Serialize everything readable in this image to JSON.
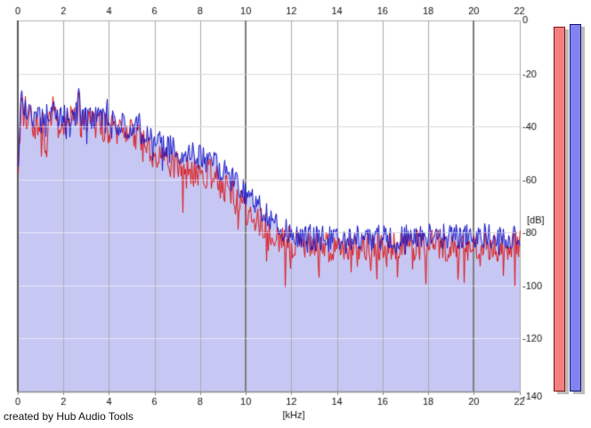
{
  "footer": {
    "credit": "created by Hub Audio Tools"
  },
  "chart_data": {
    "type": "line",
    "subtype": "audio-spectrum-analyzer",
    "title": "",
    "xlabel": "[kHz]",
    "ylabel": "[dB]",
    "xlim": [
      0,
      22
    ],
    "ylim": [
      -140,
      0
    ],
    "x_ticks": [
      0,
      2,
      4,
      6,
      8,
      10,
      12,
      14,
      16,
      18,
      20,
      22
    ],
    "x_major_gridlines": [
      10,
      20
    ],
    "y_ticks": [
      0,
      -20,
      -40,
      -60,
      -80,
      -100,
      -120,
      -140
    ],
    "grid": true,
    "legend_position": "none",
    "series": [
      {
        "name": "channel-red",
        "color": "#dc1414",
        "envelope_keypoints": [
          [
            0.0,
            -54
          ],
          [
            0.1,
            -38
          ],
          [
            0.3,
            -36
          ],
          [
            0.6,
            -38
          ],
          [
            1.0,
            -39
          ],
          [
            1.5,
            -38
          ],
          [
            2.0,
            -39
          ],
          [
            2.5,
            -37
          ],
          [
            3.0,
            -39
          ],
          [
            3.5,
            -39.5
          ],
          [
            4.0,
            -40.5
          ],
          [
            4.5,
            -42
          ],
          [
            5.0,
            -43
          ],
          [
            5.5,
            -46.5
          ],
          [
            6.0,
            -51
          ],
          [
            6.5,
            -52.5
          ],
          [
            7.0,
            -55
          ],
          [
            7.5,
            -56
          ],
          [
            8.0,
            -58
          ],
          [
            8.5,
            -59
          ],
          [
            9.0,
            -63
          ],
          [
            9.5,
            -67
          ],
          [
            10.0,
            -71
          ],
          [
            10.5,
            -75.5
          ],
          [
            11.0,
            -79
          ],
          [
            11.5,
            -82
          ],
          [
            12.0,
            -84
          ],
          [
            13,
            -85.5
          ],
          [
            14,
            -86
          ],
          [
            15,
            -85
          ],
          [
            16,
            -85
          ],
          [
            17,
            -85
          ],
          [
            18,
            -84.5
          ],
          [
            19,
            -85
          ],
          [
            20,
            -84.5
          ],
          [
            21,
            -85
          ],
          [
            22,
            -85
          ]
        ]
      },
      {
        "name": "channel-blue",
        "color": "#1414c8",
        "area_fill": "#c7c7f3",
        "envelope_keypoints": [
          [
            0.0,
            -52
          ],
          [
            0.1,
            -36
          ],
          [
            0.3,
            -34
          ],
          [
            0.6,
            -36
          ],
          [
            1.0,
            -37
          ],
          [
            1.5,
            -36
          ],
          [
            2.0,
            -37
          ],
          [
            2.5,
            -35
          ],
          [
            3.0,
            -37
          ],
          [
            3.5,
            -37
          ],
          [
            4.0,
            -38
          ],
          [
            4.5,
            -39
          ],
          [
            5.0,
            -40
          ],
          [
            5.5,
            -43
          ],
          [
            6.0,
            -46
          ],
          [
            6.5,
            -47
          ],
          [
            7.0,
            -49
          ],
          [
            7.5,
            -50
          ],
          [
            8.0,
            -52
          ],
          [
            8.5,
            -53
          ],
          [
            9.0,
            -57
          ],
          [
            9.5,
            -61
          ],
          [
            10.0,
            -65
          ],
          [
            10.5,
            -70
          ],
          [
            11.0,
            -74
          ],
          [
            11.5,
            -78
          ],
          [
            12.0,
            -80
          ],
          [
            13,
            -82
          ],
          [
            14,
            -83
          ],
          [
            15,
            -82
          ],
          [
            16,
            -82
          ],
          [
            17,
            -82
          ],
          [
            18,
            -81
          ],
          [
            19,
            -82
          ],
          [
            20,
            -81
          ],
          [
            21,
            -82
          ],
          [
            22,
            -82
          ]
        ]
      }
    ],
    "peaks_khz_db": [
      [
        0.15,
        -25
      ],
      [
        0.5,
        -31
      ],
      [
        1.55,
        -30
      ],
      [
        2.65,
        -24
      ],
      [
        3.1,
        -31
      ],
      [
        3.5,
        -32
      ],
      [
        4.2,
        -34
      ],
      [
        5.3,
        -35
      ],
      [
        8.4,
        -48
      ]
    ],
    "noise": {
      "seed": 1337,
      "amp_blue_db": 5,
      "amp_red_db": 6,
      "dip_prob_blue": 0.06,
      "dip_extra_blue_db": 8,
      "dip_prob_red": 0.09,
      "dip_extra_red_db": 13,
      "spike_prob_low": 0.05,
      "spike_extra_db": 4
    }
  },
  "meters": {
    "left": {
      "label": "red-level-meter",
      "fill": "#f28080",
      "border": "#7e1212",
      "value_db": -2.5
    },
    "right": {
      "label": "blue-level-meter",
      "fill": "#8282f0",
      "border": "#14146e",
      "value_db": -1.5
    },
    "shadow": "#bcbcbc"
  },
  "colors": {
    "background": "#ffffff",
    "grid_minor": "#b0b0b0",
    "grid_major": "#7d7d7d",
    "axis": "#5a5a5a",
    "frame_bottom": "#8a8a8a",
    "text": "#111111",
    "grid_overlay": "rgba(255,255,255,0.55)"
  }
}
